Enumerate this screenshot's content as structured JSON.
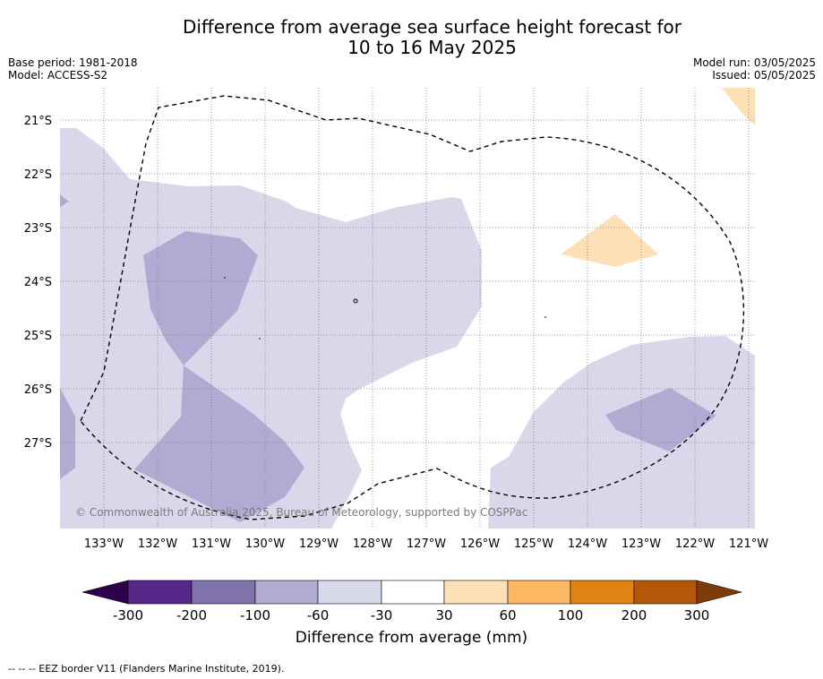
{
  "title": {
    "line1": "Difference from average sea surface height forecast for",
    "line2": "10 to 16 May 2025"
  },
  "meta_left": {
    "base_period": "Base period: 1981-2018",
    "model": "Model: ACCESS-S2"
  },
  "meta_right": {
    "model_run": "Model run: 03/05/2025",
    "issued": "Issued: 05/05/2025"
  },
  "map": {
    "lat_labels": [
      "21°S",
      "22°S",
      "23°S",
      "24°S",
      "25°S",
      "26°S",
      "27°S"
    ],
    "lon_labels": [
      "133°W",
      "132°W",
      "131°W",
      "130°W",
      "129°W",
      "128°W",
      "127°W",
      "126°W",
      "125°W",
      "124°W",
      "123°W",
      "122°W",
      "121°W"
    ],
    "copyright": "© Commonwealth of Australia 2025, Bureau of Meteorology, supported by COSPPac",
    "colors": {
      "light_purple": "#d8d8ea",
      "mid_purple": "#b1abd3",
      "light_orange": "#fee0b6",
      "eez_border": "#000000",
      "grid": "#808080"
    }
  },
  "colorbar": {
    "title": "Difference from average (mm)",
    "labels": [
      "-300",
      "-200",
      "-100",
      "-60",
      "-30",
      "30",
      "60",
      "100",
      "200",
      "300"
    ],
    "colors": [
      "#2d004b",
      "#542788",
      "#8073ac",
      "#b2abd2",
      "#d8daeb",
      "#ffffff",
      "#fee0b6",
      "#fdb863",
      "#e08214",
      "#b35806",
      "#7f3b08"
    ]
  },
  "footer": "--  --  -- EEZ border V11 (Flanders Marine Institute, 2019)."
}
